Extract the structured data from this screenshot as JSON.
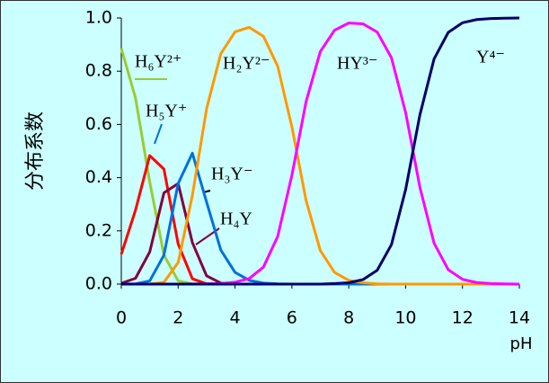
{
  "chart_data": {
    "type": "line",
    "y_label": "分布系数",
    "x_label": "pH",
    "x": [
      0,
      0.5,
      1,
      1.5,
      2,
      2.5,
      3,
      3.5,
      4,
      4.5,
      5,
      5.5,
      6,
      6.5,
      7,
      7.5,
      8,
      8.5,
      9,
      9.5,
      10,
      10.5,
      11,
      11.5,
      12,
      12.5,
      13,
      13.5,
      14
    ],
    "series": [
      {
        "name": "H₆Y²⁺",
        "color": "#99cc33",
        "values": [
          0.886,
          0.699,
          0.384,
          0.109,
          0.012,
          0.001,
          0,
          0,
          0,
          0,
          0,
          0,
          0,
          0,
          0,
          0,
          0,
          0,
          0,
          0,
          0,
          0,
          0,
          0,
          0,
          0,
          0,
          0,
          0
        ]
      },
      {
        "name": "H₅Y⁺",
        "color": "#ff0000",
        "values": [
          0.112,
          0.278,
          0.483,
          0.432,
          0.151,
          0.02,
          0.001,
          0,
          0,
          0,
          0,
          0,
          0,
          0,
          0,
          0,
          0,
          0,
          0,
          0,
          0,
          0,
          0,
          0,
          0,
          0,
          0,
          0,
          0
        ]
      },
      {
        "name": "H₄Y",
        "color": "#800040",
        "values": [
          0.003,
          0.022,
          0.121,
          0.343,
          0.378,
          0.156,
          0.031,
          0.004,
          0,
          0,
          0,
          0,
          0,
          0,
          0,
          0,
          0,
          0,
          0,
          0,
          0,
          0,
          0,
          0,
          0,
          0,
          0,
          0,
          0
        ]
      },
      {
        "name": "H₃Y⁻",
        "color": "#0070e0",
        "values": [
          0,
          0.001,
          0.012,
          0.109,
          0.378,
          0.492,
          0.308,
          0.128,
          0.044,
          0.014,
          0.004,
          0.001,
          0,
          0,
          0,
          0,
          0,
          0,
          0,
          0,
          0,
          0,
          0,
          0,
          0,
          0,
          0,
          0,
          0
        ]
      },
      {
        "name": "H₂Y²⁻",
        "color": "#ff9900",
        "values": [
          0,
          0,
          0,
          0.007,
          0.081,
          0.333,
          0.659,
          0.866,
          0.948,
          0.965,
          0.931,
          0.819,
          0.591,
          0.314,
          0.126,
          0.044,
          0.014,
          0.005,
          0.001,
          0,
          0,
          0,
          0,
          0,
          0,
          0,
          0,
          0,
          0
        ]
      },
      {
        "name": "HY³⁻",
        "color": "#ff00ff",
        "values": [
          0,
          0,
          0,
          0,
          0,
          0,
          0.001,
          0.002,
          0.007,
          0.021,
          0.064,
          0.179,
          0.409,
          0.686,
          0.874,
          0.954,
          0.981,
          0.978,
          0.947,
          0.851,
          0.645,
          0.365,
          0.154,
          0.054,
          0.018,
          0.006,
          0.002,
          0.001,
          0
        ]
      },
      {
        "name": "Y⁴⁻",
        "color": "#000066",
        "values": [
          0,
          0,
          0,
          0,
          0,
          0,
          0,
          0,
          0,
          0,
          0,
          0,
          0,
          0,
          0,
          0.002,
          0.005,
          0.017,
          0.052,
          0.148,
          0.355,
          0.635,
          0.846,
          0.946,
          0.982,
          0.994,
          0.998,
          0.999,
          1
        ]
      }
    ],
    "xlim": [
      0,
      14
    ],
    "xticks": [
      0,
      2,
      4,
      6,
      8,
      10,
      12,
      14
    ],
    "ylim": [
      0,
      1
    ],
    "yticks": [
      {
        "value": 0,
        "label": "0.0"
      },
      {
        "value": 0.2,
        "label": "0.2"
      },
      {
        "value": 0.4,
        "label": "0.4"
      },
      {
        "value": 0.6,
        "label": "0.6"
      },
      {
        "value": 0.8,
        "label": "0.8"
      },
      {
        "value": 1,
        "label": "1.0"
      }
    ]
  }
}
